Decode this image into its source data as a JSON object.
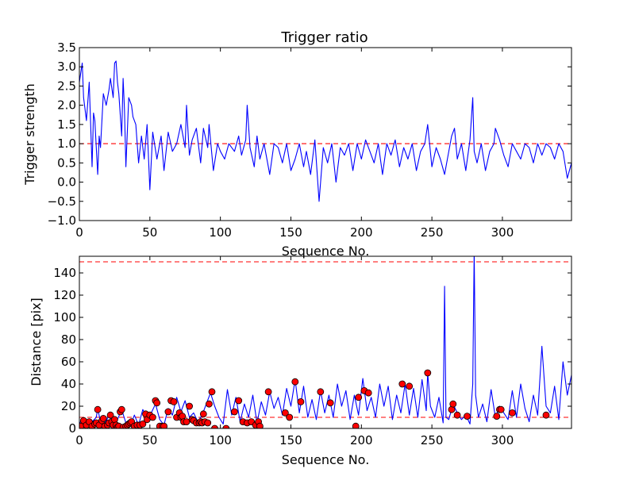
{
  "chart_data": [
    {
      "type": "line",
      "title": "Trigger ratio",
      "xlabel": "Sequence No.",
      "ylabel": "Trigger strength",
      "xlim": [
        0,
        349
      ],
      "ylim": [
        -1.0,
        3.5
      ],
      "xticks": [
        0,
        50,
        100,
        150,
        200,
        250,
        300
      ],
      "xtick_labels": [
        "0",
        "50",
        "100",
        "150",
        "200",
        "250",
        "300"
      ],
      "yticks": [
        -1.0,
        -0.5,
        0.0,
        0.5,
        1.0,
        1.5,
        2.0,
        2.5,
        3.0,
        3.5
      ],
      "ytick_labels": [
        "−1.0",
        "−0.5",
        "0.0",
        "0.5",
        "1.0",
        "1.5",
        "2.0",
        "2.5",
        "3.0",
        "3.5"
      ],
      "threshold": 1.0,
      "threshold_color": "#ff0000",
      "line_color": "#0000ff",
      "series": [
        {
          "name": "Trigger strength",
          "x": [
            0,
            2,
            3,
            5,
            7,
            9,
            10,
            11,
            13,
            14,
            15,
            17,
            19,
            21,
            22,
            24,
            25,
            26,
            27,
            28,
            30,
            31,
            32,
            33,
            35,
            37,
            38,
            40,
            42,
            44,
            46,
            48,
            50,
            52,
            55,
            58,
            60,
            63,
            66,
            69,
            72,
            75,
            76,
            78,
            80,
            83,
            86,
            88,
            91,
            92,
            95,
            98,
            100,
            103,
            106,
            110,
            113,
            115,
            118,
            119,
            121,
            124,
            126,
            128,
            131,
            135,
            138,
            141,
            144,
            147,
            150,
            153,
            156,
            159,
            161,
            164,
            167,
            170,
            173,
            176,
            179,
            182,
            185,
            188,
            191,
            194,
            197,
            200,
            203,
            206,
            209,
            212,
            215,
            218,
            221,
            224,
            227,
            230,
            233,
            236,
            239,
            242,
            245,
            247,
            250,
            253,
            256,
            259,
            262,
            264,
            266,
            268,
            271,
            274,
            277,
            279,
            280,
            282,
            285,
            288,
            291,
            294,
            295,
            298,
            301,
            304,
            307,
            310,
            313,
            316,
            319,
            322,
            325,
            328,
            331,
            334,
            337,
            340,
            343,
            346,
            349
          ],
          "y": [
            2.6,
            3.1,
            2.2,
            1.6,
            2.6,
            0.4,
            1.8,
            1.6,
            0.2,
            1.2,
            0.9,
            2.3,
            2.0,
            2.4,
            2.7,
            2.2,
            3.1,
            3.15,
            2.6,
            2.3,
            1.2,
            2.7,
            1.9,
            0.4,
            2.2,
            2.0,
            1.7,
            1.5,
            0.5,
            1.2,
            0.6,
            1.5,
            -0.2,
            1.3,
            0.6,
            1.2,
            0.3,
            1.3,
            0.8,
            1.0,
            1.5,
            0.9,
            2.0,
            0.7,
            1.1,
            1.4,
            0.5,
            1.4,
            0.9,
            1.5,
            0.3,
            1.0,
            0.8,
            0.6,
            1.0,
            0.8,
            1.2,
            0.7,
            1.1,
            2.0,
            0.9,
            0.4,
            1.2,
            0.6,
            1.0,
            0.2,
            1.0,
            0.9,
            0.5,
            1.0,
            0.3,
            0.6,
            1.0,
            0.4,
            0.8,
            0.2,
            1.1,
            -0.5,
            0.9,
            0.5,
            1.0,
            0.0,
            0.9,
            0.7,
            1.0,
            0.3,
            1.0,
            0.6,
            1.1,
            0.8,
            0.5,
            1.0,
            0.2,
            1.0,
            0.7,
            1.1,
            0.4,
            0.9,
            0.6,
            1.0,
            0.3,
            0.8,
            1.0,
            1.5,
            0.4,
            0.9,
            0.6,
            0.2,
            0.8,
            1.2,
            1.4,
            0.6,
            1.0,
            0.3,
            1.1,
            2.2,
            0.8,
            0.5,
            1.0,
            0.3,
            0.8,
            1.0,
            1.4,
            1.1,
            0.7,
            0.4,
            1.0,
            0.8,
            0.6,
            1.0,
            0.9,
            0.5,
            1.0,
            0.7,
            1.0,
            0.9,
            0.6,
            1.0,
            0.8,
            0.1,
            0.5
          ]
        }
      ]
    },
    {
      "type": "line",
      "title": "",
      "xlabel": "Sequence No.",
      "ylabel": "Distance [pix]",
      "xlim": [
        0,
        349
      ],
      "ylim": [
        0,
        155
      ],
      "xticks": [
        0,
        50,
        100,
        150,
        200,
        250,
        300
      ],
      "xtick_labels": [
        "0",
        "50",
        "100",
        "150",
        "200",
        "250",
        "300"
      ],
      "yticks": [
        0,
        20,
        40,
        60,
        80,
        100,
        120,
        140
      ],
      "ytick_labels": [
        "0",
        "20",
        "40",
        "60",
        "80",
        "100",
        "120",
        "140"
      ],
      "threshold_low": 10,
      "threshold_high": 150,
      "threshold_color": "#ff0000",
      "line_color": "#0000ff",
      "marker_color": "#ff0000",
      "series": [
        {
          "name": "Distance",
          "x": [
            0,
            3,
            6,
            9,
            12,
            13,
            15,
            18,
            21,
            24,
            27,
            30,
            33,
            36,
            39,
            42,
            45,
            48,
            51,
            54,
            57,
            60,
            63,
            66,
            69,
            72,
            75,
            78,
            81,
            84,
            87,
            90,
            93,
            96,
            99,
            102,
            105,
            108,
            111,
            114,
            117,
            120,
            123,
            126,
            129,
            132,
            135,
            138,
            141,
            144,
            147,
            150,
            153,
            156,
            159,
            162,
            165,
            168,
            171,
            174,
            177,
            180,
            183,
            186,
            189,
            192,
            195,
            198,
            201,
            204,
            207,
            210,
            213,
            216,
            219,
            222,
            225,
            228,
            231,
            234,
            237,
            240,
            243,
            246,
            247,
            249,
            252,
            255,
            258,
            259,
            260,
            262,
            265,
            268,
            271,
            274,
            277,
            279,
            280,
            281,
            283,
            286,
            289,
            292,
            295,
            298,
            301,
            304,
            307,
            310,
            313,
            316,
            319,
            322,
            325,
            328,
            331,
            334,
            337,
            340,
            343,
            346,
            349
          ],
          "y": [
            5,
            8,
            3,
            6,
            10,
            18,
            6,
            4,
            12,
            3,
            8,
            17,
            5,
            2,
            12,
            3,
            17,
            10,
            14,
            22,
            8,
            3,
            18,
            12,
            28,
            15,
            25,
            10,
            14,
            6,
            12,
            22,
            32,
            20,
            10,
            4,
            35,
            12,
            28,
            6,
            22,
            10,
            30,
            5,
            24,
            12,
            33,
            18,
            28,
            12,
            36,
            20,
            44,
            14,
            38,
            10,
            26,
            8,
            34,
            14,
            30,
            10,
            40,
            20,
            34,
            8,
            30,
            12,
            45,
            16,
            28,
            10,
            40,
            20,
            38,
            8,
            30,
            14,
            40,
            12,
            36,
            10,
            44,
            16,
            50,
            20,
            10,
            28,
            5,
            128,
            10,
            8,
            22,
            14,
            8,
            12,
            4,
            40,
            160,
            30,
            10,
            22,
            6,
            35,
            10,
            20,
            14,
            8,
            34,
            10,
            40,
            18,
            6,
            30,
            12,
            74,
            20,
            14,
            38,
            8,
            60,
            30,
            48
          ]
        }
      ],
      "markers": {
        "x": [
          1,
          3,
          5,
          7,
          9,
          11,
          12,
          13,
          14,
          16,
          17,
          18,
          20,
          21,
          22,
          23,
          24,
          25,
          26,
          27,
          28,
          29,
          30,
          31,
          33,
          34,
          35,
          36,
          37,
          39,
          41,
          43,
          45,
          47,
          48,
          50,
          52,
          54,
          55,
          57,
          59,
          60,
          63,
          65,
          67,
          69,
          71,
          72,
          73,
          74,
          76,
          78,
          80,
          81,
          83,
          85,
          86,
          87,
          88,
          89,
          91,
          92,
          94,
          96,
          104,
          110,
          113,
          116,
          119,
          122,
          125,
          127,
          128,
          134,
          146,
          149,
          153,
          157,
          171,
          178,
          196,
          198,
          202,
          205,
          229,
          234,
          247,
          264,
          265,
          268,
          275,
          296,
          298,
          299,
          307,
          331
        ],
        "y": [
          2,
          7,
          3,
          6,
          2,
          4,
          5,
          17,
          3,
          7,
          9,
          2,
          3,
          5,
          12,
          6,
          3,
          8,
          3,
          1,
          2,
          15,
          17,
          1,
          2,
          3,
          4,
          5,
          6,
          2,
          3,
          3,
          4,
          13,
          8,
          12,
          10,
          25,
          23,
          2,
          2,
          2,
          15,
          25,
          24,
          10,
          14,
          10,
          11,
          6,
          6,
          20,
          8,
          7,
          5,
          5,
          6,
          5,
          13,
          6,
          5,
          22,
          33,
          0,
          0,
          15,
          25,
          6,
          5,
          6,
          3,
          6,
          2,
          33,
          14,
          10,
          42,
          24,
          33,
          23,
          2,
          28,
          34,
          32,
          40,
          38,
          50,
          17,
          22,
          12,
          11,
          11,
          17,
          17,
          14,
          12
        ]
      }
    }
  ]
}
